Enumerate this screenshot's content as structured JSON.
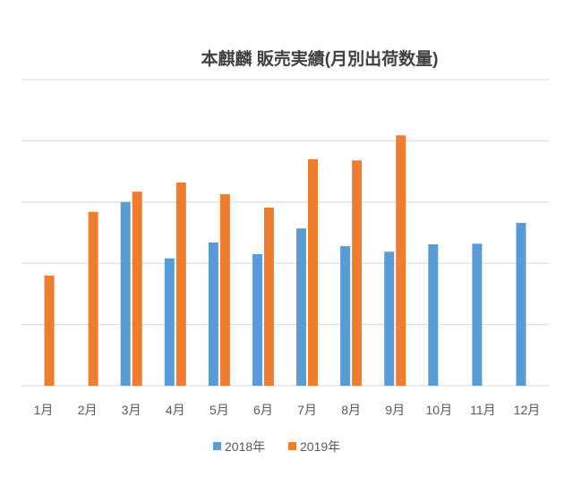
{
  "chart_data": {
    "type": "bar",
    "title": "本麒麟 販売実績(月別出荷数量)",
    "categories": [
      "1月",
      "2月",
      "3月",
      "4月",
      "5月",
      "6月",
      "7月",
      "8月",
      "9月",
      "10月",
      "11月",
      "12月"
    ],
    "series": [
      {
        "name": "2018年",
        "color": "#5b9bd5",
        "values": [
          null,
          null,
          3.0,
          2.08,
          2.34,
          2.15,
          2.57,
          2.28,
          2.19,
          2.31,
          2.32,
          2.66
        ]
      },
      {
        "name": "2019年",
        "color": "#ed7d31",
        "values": [
          1.8,
          2.84,
          3.17,
          3.32,
          3.13,
          2.91,
          3.7,
          3.68,
          4.09,
          null,
          null,
          null
        ]
      }
    ],
    "ylim": [
      0,
      5
    ],
    "grid": true,
    "legend": "bottom"
  }
}
